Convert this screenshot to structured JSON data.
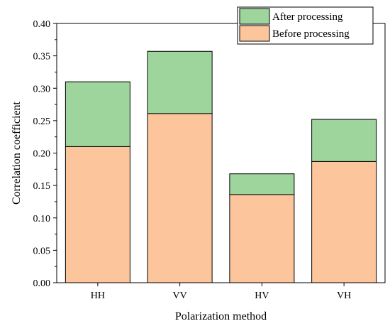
{
  "chart_data": {
    "type": "bar",
    "stacked": true,
    "categories": [
      "HH",
      "VV",
      "HV",
      "VH"
    ],
    "series": [
      {
        "name": "Before processing",
        "values": [
          0.21,
          0.261,
          0.136,
          0.187
        ],
        "color": "#FDC59B"
      },
      {
        "name": "After processing",
        "values": [
          0.1,
          0.096,
          0.032,
          0.065
        ],
        "color": "#9ED59D"
      }
    ],
    "stack_totals": [
      0.31,
      0.357,
      0.168,
      0.252
    ],
    "xlabel": "Polarization method",
    "ylabel": "Correlation coefficient",
    "ylim": [
      0,
      0.4
    ],
    "yticks": [
      "0.00",
      "0.05",
      "0.10",
      "0.15",
      "0.20",
      "0.25",
      "0.30",
      "0.35",
      "0.40"
    ],
    "legend_order": [
      "After processing",
      "Before processing"
    ],
    "legend_position": "top-right",
    "grid": false
  }
}
